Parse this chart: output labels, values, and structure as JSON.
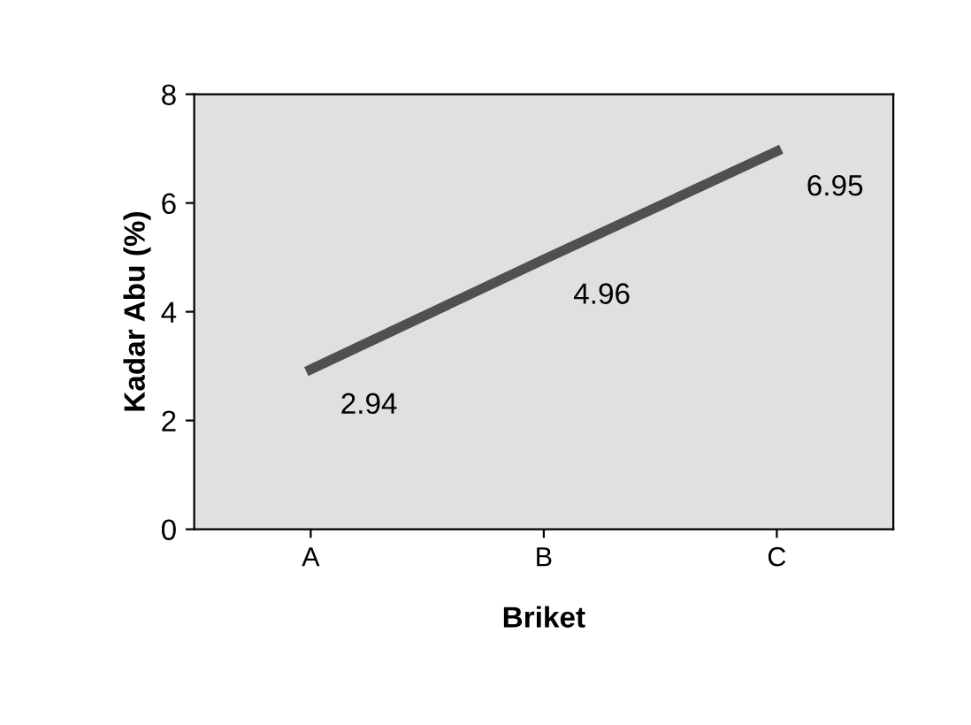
{
  "chart_data": {
    "type": "line",
    "xlabel": "Briket",
    "ylabel": "Kadar Abu (%)",
    "categories": [
      "A",
      "B",
      "C"
    ],
    "series": [
      {
        "color": "#505050",
        "values": [
          2.94,
          4.96,
          6.95
        ]
      }
    ],
    "ylim": [
      0,
      8
    ],
    "yticks": [
      0,
      2,
      4,
      6,
      8
    ],
    "data_labels": true,
    "grid": false,
    "legend": false,
    "marker": "none",
    "line_style": "solid"
  }
}
